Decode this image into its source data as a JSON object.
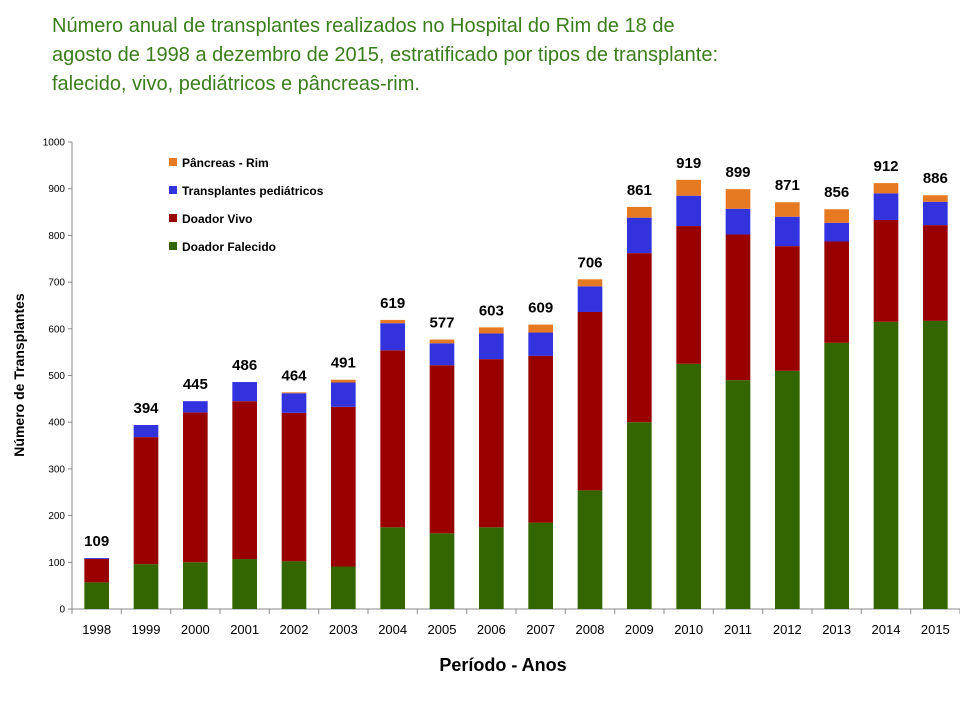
{
  "chart_data": {
    "type": "bar",
    "stacked": true,
    "title": "Número anual de transplantes realizados no Hospital do Rim de 18 de agosto de 1998 a dezembro de 2015, estratificado por tipos de transplante: falecido, vivo, pediátricos e pâncreas-rim.",
    "xlabel": "Período - Anos",
    "ylabel": "Número de Transplantes",
    "ylim": [
      0,
      1000
    ],
    "yticks": [
      0,
      100,
      200,
      300,
      400,
      500,
      600,
      700,
      800,
      900,
      1000
    ],
    "grid": false,
    "legend_position": "top-left",
    "categories": [
      "1998",
      "1999",
      "2000",
      "2001",
      "2002",
      "2003",
      "2004",
      "2005",
      "2006",
      "2007",
      "2008",
      "2009",
      "2010",
      "2011",
      "2012",
      "2013",
      "2014",
      "2015"
    ],
    "totals": [
      109,
      394,
      445,
      486,
      464,
      491,
      619,
      577,
      603,
      609,
      706,
      861,
      919,
      899,
      871,
      856,
      912,
      886
    ],
    "series": [
      {
        "name": "Doador Falecido",
        "color": "#336600",
        "values": [
          57,
          96,
          100,
          107,
          102,
          91,
          175,
          162,
          175,
          185,
          254,
          400,
          525,
          490,
          510,
          570,
          615,
          617
        ]
      },
      {
        "name": "Doador Vivo",
        "color": "#990000",
        "values": [
          50,
          272,
          321,
          338,
          318,
          342,
          379,
          360,
          360,
          357,
          382,
          362,
          295,
          312,
          267,
          217,
          218,
          205
        ]
      },
      {
        "name": "Transplantes pediátricos",
        "color": "#3333dd",
        "values": [
          2,
          26,
          24,
          41,
          42,
          52,
          58,
          47,
          55,
          50,
          55,
          76,
          65,
          55,
          63,
          40,
          57,
          50
        ]
      },
      {
        "name": "Pâncreas - Rim",
        "color": "#e67a22",
        "values": [
          0,
          0,
          0,
          0,
          2,
          6,
          7,
          8,
          13,
          17,
          15,
          23,
          34,
          42,
          31,
          29,
          22,
          14
        ]
      }
    ]
  }
}
